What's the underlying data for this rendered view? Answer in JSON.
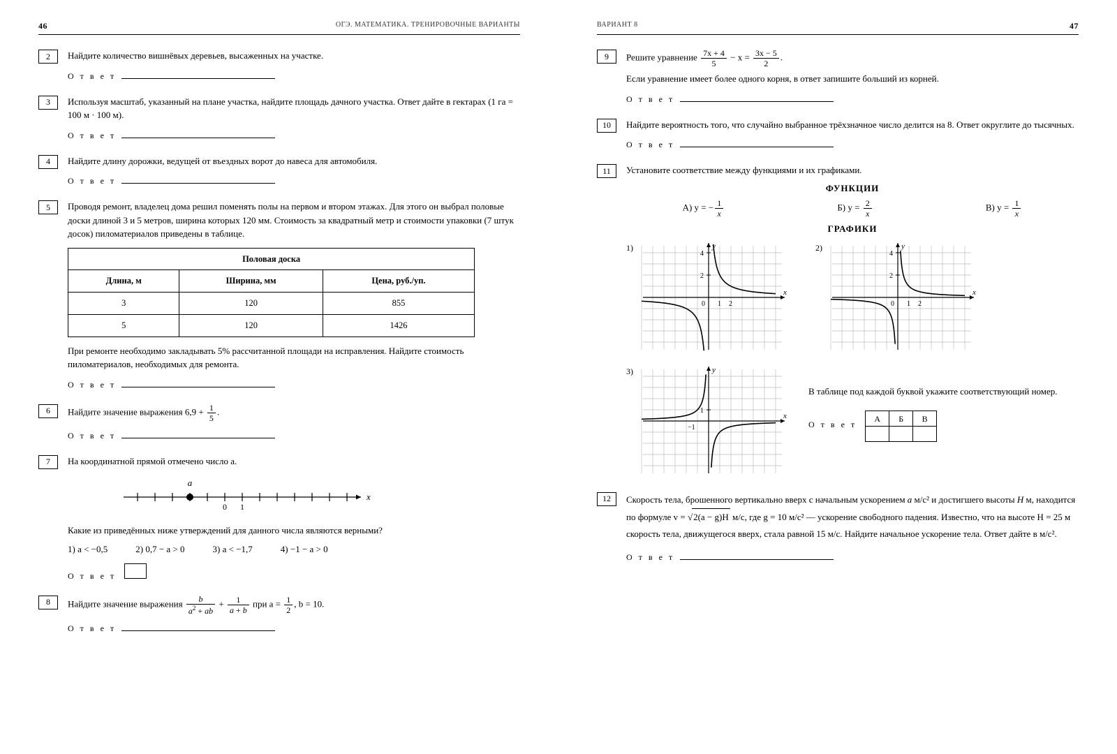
{
  "left": {
    "page_num": "46",
    "header": "ОГЭ. МАТЕМАТИКА. ТРЕНИРОВОЧНЫЕ ВАРИАНТЫ",
    "answer_label": "О т в е т",
    "p2": {
      "num": "2",
      "text": "Найдите количество вишнёвых деревьев, высаженных на участке."
    },
    "p3": {
      "num": "3",
      "text": "Используя масштаб, указанный на плане участка, найдите площадь дачного участка. Ответ дайте в гектарах (1 га = 100 м · 100 м)."
    },
    "p4": {
      "num": "4",
      "text": "Найдите длину дорожки, ведущей от въездных ворот до навеса для автомобиля."
    },
    "p5": {
      "num": "5",
      "text": "Проводя ремонт, владелец дома решил поменять полы на первом и втором этажах. Для этого он выбрал половые доски длиной 3 и 5 метров, ширина которых 120 мм. Стоимость за квадратный метр и стоимости упаковки (7 штук досок) пиломатериалов приведены в таблице.",
      "table_title": "Половая доска",
      "cols": [
        "Длина, м",
        "Ширина, мм",
        "Цена, руб./уп."
      ],
      "rows": [
        [
          "3",
          "120",
          "855"
        ],
        [
          "5",
          "120",
          "1426"
        ]
      ],
      "text2": "При ремонте необходимо закладывать 5% рассчитанной площади на исправления. Найдите стоимость пиломатериалов, необходимых для ремонта."
    },
    "p6": {
      "num": "6",
      "pre": "Найдите значение выражения  6,9 +",
      "frac_num": "1",
      "frac_den": "5",
      "post": "."
    },
    "p7": {
      "num": "7",
      "text": "На координатной прямой отмечено число a.",
      "a_label": "a",
      "tick0": "0",
      "tick1": "1",
      "x_label": "x",
      "q": "Какие из приведённых ниже утверждений для данного числа являются верными?",
      "opts": [
        "1) a < −0,5",
        "2) 0,7 − a > 0",
        "3) a < −1,7",
        "4) −1 − a > 0"
      ]
    },
    "p8": {
      "num": "8",
      "pre": "Найдите значение выражения ",
      "mid": " при  a = ",
      "a_num": "1",
      "a_den": "2",
      "post": ", b = 10."
    }
  },
  "right": {
    "page_num": "47",
    "header": "ВАРИАНТ 8",
    "answer_label": "О т в е т",
    "p9": {
      "num": "9",
      "pre": "Решите уравнение ",
      "f1n": "7x + 4",
      "f1d": "5",
      "mid": " − x = ",
      "f2n": "3x − 5",
      "f2d": "2",
      "post": ".",
      "text2": "Если уравнение имеет более одного корня, в ответ запишите больший из корней."
    },
    "p10": {
      "num": "10",
      "text": "Найдите вероятность того, что случайно выбранное трёхзначное число делится на 8. Ответ округлите до тысячных."
    },
    "p11": {
      "num": "11",
      "text": "Установите соответствие между функциями и их графиками.",
      "func_title": "ФУНКЦИИ",
      "fA_pre": "А)  y = −",
      "fA_n": "1",
      "fA_d": "x",
      "fB_pre": "Б)  y = ",
      "fB_n": "2",
      "fB_d": "x",
      "fC_pre": "В)  y = ",
      "fC_n": "1",
      "fC_d": "x",
      "graph_title": "ГРАФИКИ",
      "g1": "1)",
      "g2": "2)",
      "g3": "3)",
      "note": "В таблице под каждой буквой укажите соответствующий номер.",
      "table_heads": [
        "А",
        "Б",
        "В"
      ],
      "graph": {
        "axis_color": "#000",
        "grid_color": "#bcbcbc",
        "curve_color": "#000",
        "y_ticks": [
          "2",
          "4"
        ],
        "x_ticks": [
          "0",
          "1",
          "2"
        ],
        "neg_tick": "−1",
        "xlabel": "x",
        "ylabel": "y"
      }
    },
    "p12": {
      "num": "12",
      "text_a": "Скорость тела, брошенного вертикально вверх с начальным ускорением ",
      "text_b": " м/с² и достигшего высоты ",
      "text_c": " м, находится по формуле  v = ",
      "sqrt_inner": "2(a − g)H",
      "text_d": " м/с, где g = 10 м/с² — ускорение свободного падения. Известно, что на высоте H = 25 м скорость тела, движущегося вверх, стала равной 15 м/с. Найдите начальное ускорение тела. Ответ дайте в м/с²."
    }
  }
}
